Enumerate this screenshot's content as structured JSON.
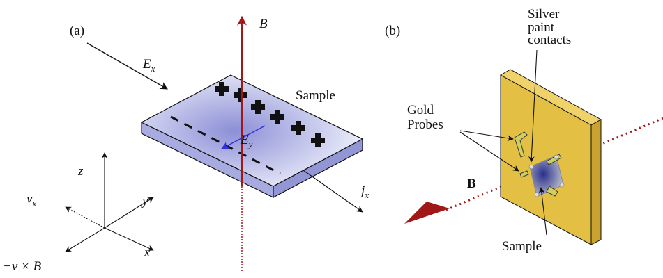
{
  "panel_a": {
    "label": "(a)",
    "field_b": "B",
    "field_ex": {
      "symbol": "E",
      "subscript": "x"
    },
    "sample": "Sample",
    "field_ey": {
      "symbol": "E",
      "subscript": "y"
    },
    "current_jx": {
      "symbol": "j",
      "subscript": "x"
    },
    "axes": {
      "z": "z",
      "y": "y",
      "x": "x",
      "vx": {
        "symbol": "v",
        "subscript": "x"
      },
      "force": "−v × B"
    }
  },
  "panel_b": {
    "label": "(b)",
    "contacts": {
      "lines": [
        "Silver",
        "paint",
        "contacts"
      ]
    },
    "probes": {
      "lines": [
        "Gold",
        "Probes"
      ]
    },
    "field_b": "B",
    "sample": "Sample"
  }
}
